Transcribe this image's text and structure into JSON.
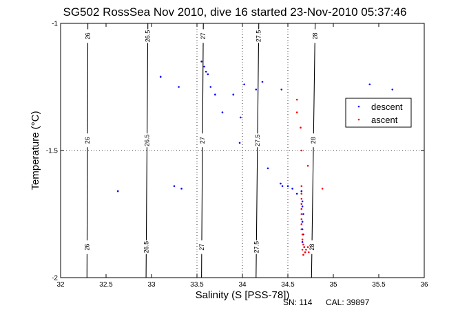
{
  "chart_data": {
    "type": "scatter",
    "title": "SG502 RossSea Nov 2010, dive 16 started 23-Nov-2010 05:37:46",
    "xlabel": "Salinity (S [PSS-78])",
    "ylabel": "Temperature (°C)",
    "xlim": [
      32,
      36
    ],
    "ylim": [
      -2,
      -1
    ],
    "x_ticks": [
      "32",
      "32.5",
      "33",
      "33.5",
      "34",
      "34.5",
      "35",
      "35.5",
      "36"
    ],
    "y_ticks": [
      "-1",
      "-1.5",
      "-2"
    ],
    "grid": "dotted at -1.5 and 33.5, 34, 34.5",
    "legend_position": "right",
    "density_contours": [
      {
        "label": "26",
        "x_top": 32.3,
        "x_bottom": 32.29
      },
      {
        "label": "26.5",
        "x_top": 32.96,
        "x_bottom": 32.94
      },
      {
        "label": "27",
        "x_top": 33.57,
        "x_bottom": 33.55
      },
      {
        "label": "27.5",
        "x_top": 34.18,
        "x_bottom": 34.15
      },
      {
        "label": "28",
        "x_top": 34.8,
        "x_bottom": 34.76
      }
    ],
    "series": [
      {
        "name": "descent",
        "color": "#0000ff",
        "points": [
          [
            33.55,
            -1.15
          ],
          [
            33.58,
            -1.17
          ],
          [
            33.6,
            -1.19
          ],
          [
            33.62,
            -1.2
          ],
          [
            33.1,
            -1.21
          ],
          [
            33.65,
            -1.25
          ],
          [
            33.3,
            -1.25
          ],
          [
            33.7,
            -1.28
          ],
          [
            33.9,
            -1.28
          ],
          [
            34.02,
            -1.24
          ],
          [
            34.15,
            -1.26
          ],
          [
            34.22,
            -1.23
          ],
          [
            34.43,
            -1.26
          ],
          [
            35.4,
            -1.24
          ],
          [
            35.65,
            -1.26
          ],
          [
            33.78,
            -1.35
          ],
          [
            33.98,
            -1.37
          ],
          [
            33.97,
            -1.47
          ],
          [
            34.28,
            -1.57
          ],
          [
            32.63,
            -1.66
          ],
          [
            33.25,
            -1.64
          ],
          [
            33.33,
            -1.65
          ],
          [
            34.42,
            -1.63
          ],
          [
            34.44,
            -1.64
          ],
          [
            34.5,
            -1.64
          ],
          [
            34.55,
            -1.65
          ],
          [
            34.6,
            -1.67
          ],
          [
            34.65,
            -1.66
          ],
          [
            34.66,
            -1.7
          ],
          [
            34.66,
            -1.72
          ],
          [
            34.67,
            -1.75
          ],
          [
            34.66,
            -1.78
          ],
          [
            34.66,
            -1.81
          ],
          [
            34.67,
            -1.83
          ],
          [
            34.66,
            -1.86
          ],
          [
            34.68,
            -1.88
          ],
          [
            34.69,
            -1.9
          ]
        ]
      },
      {
        "name": "ascent",
        "color": "#ff0000",
        "points": [
          [
            34.6,
            -1.3
          ],
          [
            34.6,
            -1.35
          ],
          [
            34.64,
            -1.41
          ],
          [
            34.65,
            -1.5
          ],
          [
            34.72,
            -1.56
          ],
          [
            34.65,
            -1.64
          ],
          [
            34.88,
            -1.65
          ],
          [
            34.65,
            -1.67
          ],
          [
            34.65,
            -1.69
          ],
          [
            34.65,
            -1.71
          ],
          [
            34.65,
            -1.73
          ],
          [
            34.65,
            -1.75
          ],
          [
            34.65,
            -1.77
          ],
          [
            34.65,
            -1.79
          ],
          [
            34.65,
            -1.81
          ],
          [
            34.66,
            -1.83
          ],
          [
            34.66,
            -1.85
          ],
          [
            34.67,
            -1.87
          ],
          [
            34.68,
            -1.88
          ],
          [
            34.66,
            -1.89
          ],
          [
            34.69,
            -1.9
          ],
          [
            34.7,
            -1.89
          ],
          [
            34.72,
            -1.88
          ],
          [
            34.67,
            -1.91
          ],
          [
            34.73,
            -1.9
          ]
        ]
      }
    ]
  },
  "footer": {
    "sn": "SN: 114",
    "cal": "CAL: 39897"
  }
}
